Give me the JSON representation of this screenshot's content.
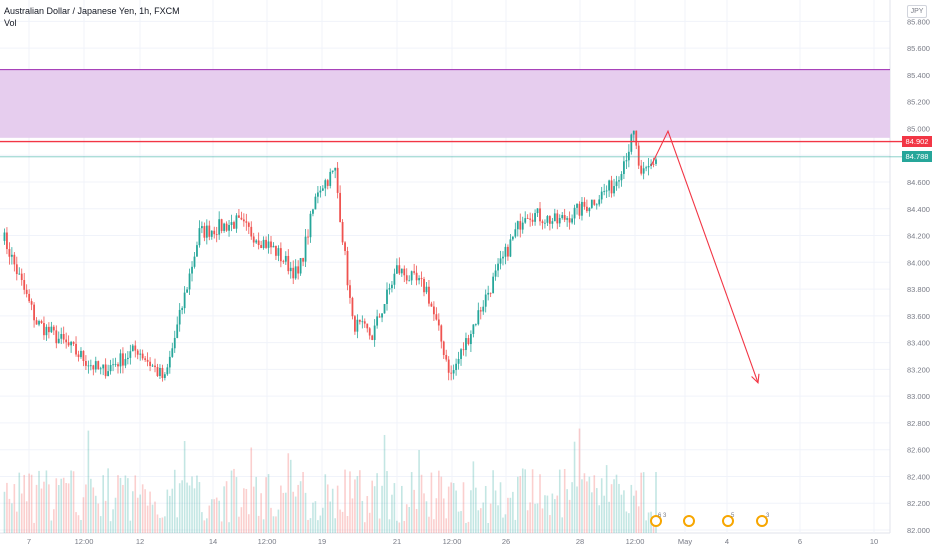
{
  "legend": {
    "symbol": "Australian Dollar / Japanese Yen, 1h, FXCM",
    "indicator": "Vol"
  },
  "currency_badge": "JPY",
  "price_tags": {
    "supply_line": "84.902",
    "last_price": "84.788"
  },
  "colors": {
    "up": "#26a69a",
    "down": "#ef5350",
    "zone_fill": "#e6cdee",
    "zone_border": "#9c27b0",
    "arrow": "#f23645",
    "line_red": "#f23645",
    "line_green": "#26a69a",
    "axis_text": "#787b86"
  },
  "events": [
    {
      "label": "6"
    },
    {
      "label": "3"
    },
    {
      "label": ""
    },
    {
      "label": "5"
    },
    {
      "label": "3"
    }
  ],
  "chart_data": {
    "type": "candlestick",
    "title": "Australian Dollar / Japanese Yen, 1h, FXCM",
    "ylim": [
      82.0,
      85.9
    ],
    "y_ticks": [
      "85.800",
      "85.600",
      "85.400",
      "85.200",
      "85.000",
      "84.800",
      "84.600",
      "84.400",
      "84.200",
      "84.000",
      "83.800",
      "83.600",
      "83.400",
      "83.200",
      "83.000",
      "82.800",
      "82.600",
      "82.400",
      "82.200",
      "82.000"
    ],
    "x_ticks": [
      "7",
      "12:00",
      "12",
      "14",
      "12:00",
      "19",
      "21",
      "12:00",
      "26",
      "28",
      "12:00",
      "May",
      "4",
      "6",
      "10"
    ],
    "supply_zone": {
      "low": 84.93,
      "high": 85.44
    },
    "lines": {
      "red_line": 84.902,
      "last_price": 84.788
    },
    "projection_arrow": {
      "from": [
        0.0,
        84.7
      ],
      "peak": [
        1.0,
        84.98
      ],
      "to": [
        2.0,
        83.1
      ]
    },
    "waypoints": [
      [
        0,
        84.22
      ],
      [
        14,
        83.55
      ],
      [
        25,
        83.4
      ],
      [
        40,
        83.18
      ],
      [
        55,
        83.35
      ],
      [
        66,
        83.12
      ],
      [
        80,
        84.22
      ],
      [
        95,
        84.3
      ],
      [
        110,
        84.1
      ],
      [
        120,
        83.9
      ],
      [
        128,
        84.55
      ],
      [
        135,
        84.68
      ],
      [
        142,
        83.55
      ],
      [
        150,
        83.45
      ],
      [
        160,
        83.95
      ],
      [
        172,
        83.8
      ],
      [
        182,
        83.15
      ],
      [
        195,
        83.7
      ],
      [
        212,
        84.38
      ],
      [
        225,
        84.3
      ],
      [
        235,
        84.4
      ],
      [
        248,
        84.58
      ],
      [
        256,
        84.95
      ],
      [
        259,
        84.62
      ],
      [
        265,
        84.78
      ]
    ],
    "ohlc_count": 265,
    "volume_baseline_ratio": 0.35
  }
}
